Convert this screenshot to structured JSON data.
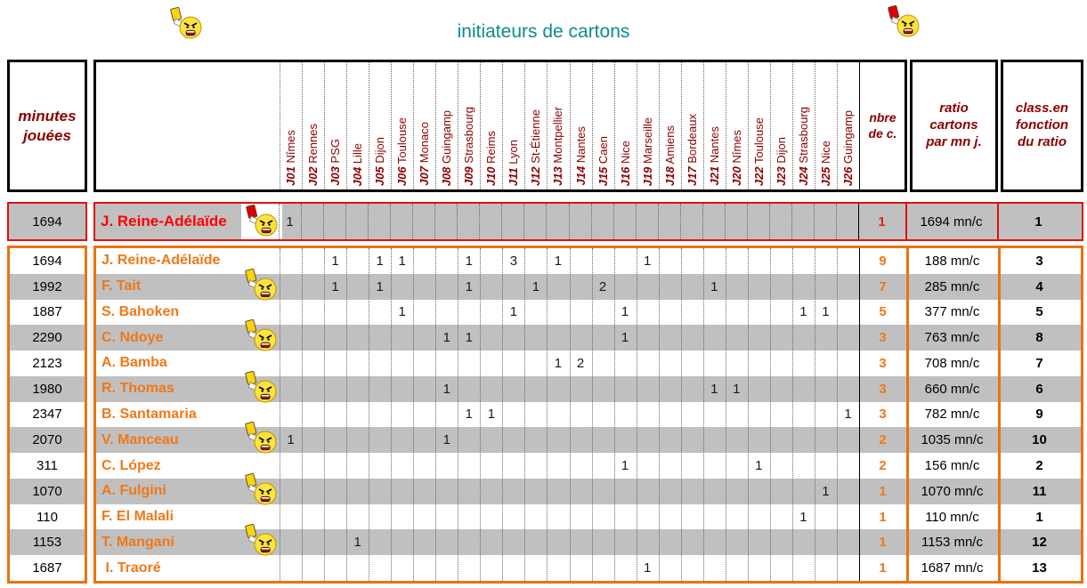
{
  "title": "initiateurs de cartons",
  "colors": {
    "dark_red": "#8B0000",
    "orange": "#F07818",
    "orange_border": "#E8740E",
    "red": "#FF0000",
    "red_border": "#DF1010",
    "gray_row": "#C0C0C0",
    "teal_title": "#0E8C8C",
    "yellow_card": "#FFD400",
    "red_card": "#E00000"
  },
  "icons": {
    "left_header": "yellow-card-angry-referee",
    "right_header": "red-card-angry-referee",
    "row_icon": "yellow-card-angry-referee"
  },
  "header": {
    "minutes_label": "minutes jouées",
    "nbre_label": "nbre de c.",
    "ratio_label": "ratio cartons par mn j.",
    "class_label": "class.en fonction du ratio",
    "matchdays": [
      {
        "code": "J01",
        "team": "Nîmes"
      },
      {
        "code": "J02",
        "team": "Rennes"
      },
      {
        "code": "J03",
        "team": "PSG"
      },
      {
        "code": "J04",
        "team": "Lille"
      },
      {
        "code": "J05",
        "team": "Dijon"
      },
      {
        "code": "J06",
        "team": "Toulouse"
      },
      {
        "code": "J07",
        "team": "Monaco"
      },
      {
        "code": "J08",
        "team": "Guingamp"
      },
      {
        "code": "J09",
        "team": "Strasbourg"
      },
      {
        "code": "J10",
        "team": "Reims"
      },
      {
        "code": "J11",
        "team": "Lyon"
      },
      {
        "code": "J12",
        "team": "St-Étienne"
      },
      {
        "code": "J13",
        "team": "Montpellier"
      },
      {
        "code": "J14",
        "team": "Nantes"
      },
      {
        "code": "J15",
        "team": "Caen"
      },
      {
        "code": "J16",
        "team": "Nice"
      },
      {
        "code": "J19",
        "team": "Marseille"
      },
      {
        "code": "J18",
        "team": "Amiens"
      },
      {
        "code": "J17",
        "team": "Bordeaux"
      },
      {
        "code": "J21",
        "team": "Nantes"
      },
      {
        "code": "J20",
        "team": "Nîmes"
      },
      {
        "code": "J22",
        "team": "Toulouse"
      },
      {
        "code": "J23",
        "team": "Dijon"
      },
      {
        "code": "J24",
        "team": "Strasbourg"
      },
      {
        "code": "J25",
        "team": "Nice"
      },
      {
        "code": "J26",
        "team": "Guingamp"
      }
    ]
  },
  "top_row": {
    "minutes": "1694",
    "name": "J. Reine-Adélaïde",
    "card": "red",
    "marks": {
      "1": "1"
    },
    "nbre": "1",
    "ratio": "1694 mn/c",
    "rank": "1"
  },
  "rows": [
    {
      "minutes": "1694",
      "name": "J. Reine-Adélaïde",
      "emoji": false,
      "marks": {
        "3": "1",
        "5": "1",
        "6": "1",
        "9": "1",
        "11": "3",
        "13": "1",
        "17": "1"
      },
      "nbre": "9",
      "ratio": "188 mn/c",
      "rank": "3"
    },
    {
      "minutes": "1992",
      "name": "F. Tait",
      "emoji": true,
      "marks": {
        "3": "1",
        "5": "1",
        "9": "1",
        "12": "1",
        "15": "2",
        "20": "1"
      },
      "nbre": "7",
      "ratio": "285 mn/c",
      "rank": "4"
    },
    {
      "minutes": "1887",
      "name": "S. Bahoken",
      "emoji": false,
      "marks": {
        "6": "1",
        "11": "1",
        "16": "1",
        "24": "1",
        "25": "1"
      },
      "nbre": "5",
      "ratio": "377 mn/c",
      "rank": "5"
    },
    {
      "minutes": "2290",
      "name": "C. Ndoye",
      "emoji": true,
      "marks": {
        "8": "1",
        "9": "1",
        "16": "1"
      },
      "nbre": "3",
      "ratio": "763 mn/c",
      "rank": "8"
    },
    {
      "minutes": "2123",
      "name": "A. Bamba",
      "emoji": false,
      "marks": {
        "13": "1",
        "14": "2"
      },
      "nbre": "3",
      "ratio": "708 mn/c",
      "rank": "7"
    },
    {
      "minutes": "1980",
      "name": "R. Thomas",
      "emoji": true,
      "marks": {
        "8": "1",
        "20": "1",
        "21": "1"
      },
      "nbre": "3",
      "ratio": "660 mn/c",
      "rank": "6"
    },
    {
      "minutes": "2347",
      "name": "B. Santamaria",
      "emoji": false,
      "marks": {
        "9": "1",
        "10": "1",
        "26": "1"
      },
      "nbre": "3",
      "ratio": "782 mn/c",
      "rank": "9"
    },
    {
      "minutes": "2070",
      "name": "V. Manceau",
      "emoji": true,
      "marks": {
        "1": "1",
        "8": "1"
      },
      "nbre": "2",
      "ratio": "1035 mn/c",
      "rank": "10"
    },
    {
      "minutes": "311",
      "name": "C. López",
      "emoji": false,
      "marks": {
        "16": "1",
        "22": "1"
      },
      "nbre": "2",
      "ratio": "156 mn/c",
      "rank": "2"
    },
    {
      "minutes": "1070",
      "name": "A. Fulgini",
      "emoji": true,
      "marks": {
        "25": "1"
      },
      "nbre": "1",
      "ratio": "1070 mn/c",
      "rank": "11"
    },
    {
      "minutes": "110",
      "name": "F. El Malali",
      "emoji": false,
      "marks": {
        "24": "1"
      },
      "nbre": "1",
      "ratio": "110 mn/c",
      "rank": "1"
    },
    {
      "minutes": "1153",
      "name": "T. Mangani",
      "emoji": true,
      "marks": {
        "4": "1"
      },
      "nbre": "1",
      "ratio": "1153 mn/c",
      "rank": "12"
    },
    {
      "minutes": "1687",
      "name": " I. Traoré",
      "emoji": false,
      "marks": {
        "17": "1"
      },
      "nbre": "1",
      "ratio": "1687 mn/c",
      "rank": "13"
    }
  ]
}
